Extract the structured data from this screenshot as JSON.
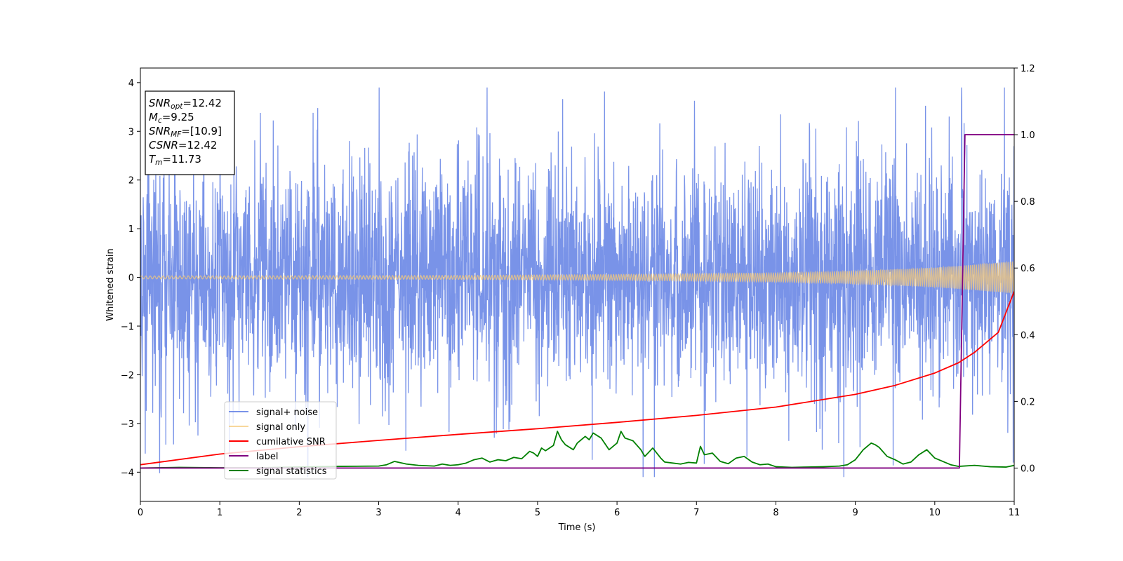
{
  "chart_data": {
    "type": "line",
    "xlabel": "Time (s)",
    "ylabel": "Whitened strain",
    "xlim": [
      0,
      11
    ],
    "ylim_left": [
      -4.6,
      4.3
    ],
    "ylim_right": [
      -0.1,
      1.2
    ],
    "x_ticks": [
      "0",
      "1",
      "2",
      "3",
      "4",
      "5",
      "6",
      "7",
      "8",
      "9",
      "10",
      "11"
    ],
    "y_ticks_left": [
      "−4",
      "−3",
      "−2",
      "−1",
      "0",
      "1",
      "2",
      "3",
      "4"
    ],
    "y_ticks_right": [
      "0.0",
      "0.2",
      "0.4",
      "0.6",
      "0.8",
      "1.0",
      "1.2"
    ],
    "annotation": [
      {
        "sym": "SNR",
        "sub": "opt",
        "val": "=12.42"
      },
      {
        "sym": "M",
        "sub": "c",
        "val": "=9.25"
      },
      {
        "sym": "SNR",
        "sub": "MF",
        "val": "=[10.9]"
      },
      {
        "sym": "CSNR",
        "sub": "",
        "val": "=12.42"
      },
      {
        "sym": "T",
        "sub": "m",
        "val": "=11.73"
      }
    ],
    "legend_position": "lower-left",
    "series": [
      {
        "name": "signal+ noise",
        "color": "#5b7be3",
        "axis": "left",
        "description": "whitened noise plus signal, std ~1, range approx -4.1 to 3.9"
      },
      {
        "name": "signal only",
        "color": "#f5c97a",
        "axis": "left",
        "description": "chirp amplitude growing from ~0.03 at t=0 to ~0.35 at t=11",
        "amplitude": {
          "x": [
            0,
            4,
            6,
            8,
            9,
            10,
            10.5,
            11
          ],
          "y": [
            0.03,
            0.04,
            0.06,
            0.09,
            0.13,
            0.2,
            0.26,
            0.33
          ]
        }
      },
      {
        "name": "cumilative SNR",
        "color": "#ff0000",
        "axis": "right",
        "x": [
          0,
          1,
          2,
          3,
          4,
          5,
          6,
          7,
          8,
          9,
          9.5,
          10,
          10.3,
          10.5,
          10.8,
          11
        ],
        "y": [
          0.01,
          0.042,
          0.064,
          0.083,
          0.101,
          0.118,
          0.137,
          0.158,
          0.183,
          0.221,
          0.248,
          0.285,
          0.316,
          0.347,
          0.407,
          0.53
        ]
      },
      {
        "name": "label",
        "color": "#800080",
        "axis": "right",
        "x": [
          0,
          10.31,
          10.38,
          11
        ],
        "y": [
          0,
          0,
          1,
          1
        ]
      },
      {
        "name": "signal statistics",
        "color": "#008000",
        "axis": "right",
        "x": [
          0,
          0.5,
          1,
          1.5,
          2,
          2.5,
          3,
          3.1,
          3.2,
          3.35,
          3.5,
          3.7,
          3.8,
          3.9,
          4.0,
          4.1,
          4.2,
          4.3,
          4.4,
          4.5,
          4.6,
          4.7,
          4.8,
          4.9,
          4.95,
          5.0,
          5.05,
          5.1,
          5.2,
          5.25,
          5.3,
          5.35,
          5.45,
          5.5,
          5.6,
          5.65,
          5.7,
          5.8,
          5.9,
          6.0,
          6.05,
          6.1,
          6.2,
          6.3,
          6.35,
          6.45,
          6.55,
          6.6,
          6.7,
          6.8,
          6.9,
          7.0,
          7.05,
          7.1,
          7.2,
          7.3,
          7.4,
          7.5,
          7.6,
          7.7,
          7.8,
          7.9,
          8.0,
          8.2,
          8.4,
          8.6,
          8.8,
          8.9,
          9.0,
          9.1,
          9.2,
          9.25,
          9.3,
          9.4,
          9.5,
          9.6,
          9.7,
          9.8,
          9.9,
          10.0,
          10.1,
          10.2,
          10.3,
          10.5,
          10.7,
          10.9,
          11
        ],
        "y": [
          0.0,
          0.002,
          0.001,
          0.001,
          0.003,
          0.005,
          0.006,
          0.01,
          0.02,
          0.012,
          0.008,
          0.006,
          0.012,
          0.008,
          0.01,
          0.015,
          0.025,
          0.03,
          0.018,
          0.025,
          0.022,
          0.032,
          0.028,
          0.05,
          0.045,
          0.035,
          0.06,
          0.052,
          0.068,
          0.11,
          0.085,
          0.07,
          0.055,
          0.075,
          0.095,
          0.085,
          0.105,
          0.09,
          0.055,
          0.075,
          0.11,
          0.09,
          0.082,
          0.055,
          0.035,
          0.06,
          0.03,
          0.018,
          0.015,
          0.012,
          0.017,
          0.015,
          0.065,
          0.04,
          0.045,
          0.02,
          0.013,
          0.03,
          0.035,
          0.018,
          0.01,
          0.012,
          0.004,
          0.002,
          0.003,
          0.004,
          0.006,
          0.01,
          0.025,
          0.055,
          0.075,
          0.07,
          0.062,
          0.035,
          0.025,
          0.012,
          0.018,
          0.04,
          0.055,
          0.03,
          0.02,
          0.01,
          0.005,
          0.008,
          0.004,
          0.003,
          0.008
        ]
      }
    ]
  }
}
